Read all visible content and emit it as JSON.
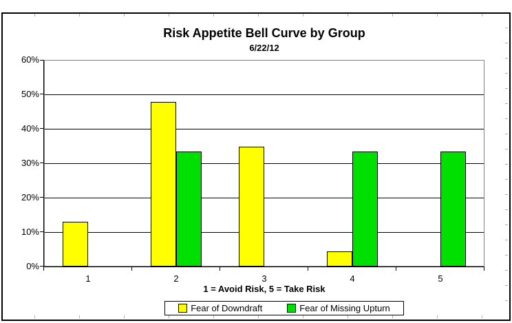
{
  "chart_data": {
    "type": "bar",
    "title": "Risk Appetite Bell Curve by Group",
    "subtitle": "6/22/12",
    "categories": [
      "1",
      "2",
      "3",
      "4",
      "5"
    ],
    "series": [
      {
        "name": "Fear of Downdraft",
        "color": "#ffff00",
        "values": [
          13.0,
          47.8,
          34.8,
          4.3,
          0
        ]
      },
      {
        "name": "Fear of Missing Upturn",
        "color": "#00e000",
        "values": [
          0,
          33.3,
          0,
          33.3,
          33.3
        ]
      }
    ],
    "xlabel": "1 = Avoid Risk, 5 = Take Risk",
    "ylabel": "",
    "ylim": [
      0,
      60
    ],
    "ytick_step": 10,
    "ytick_labels": [
      "0%",
      "10%",
      "20%",
      "30%",
      "40%",
      "50%",
      "60%"
    ],
    "grid": true,
    "legend_position": "bottom",
    "plot_border_color": "#808080",
    "gridline_color": "#000000"
  }
}
